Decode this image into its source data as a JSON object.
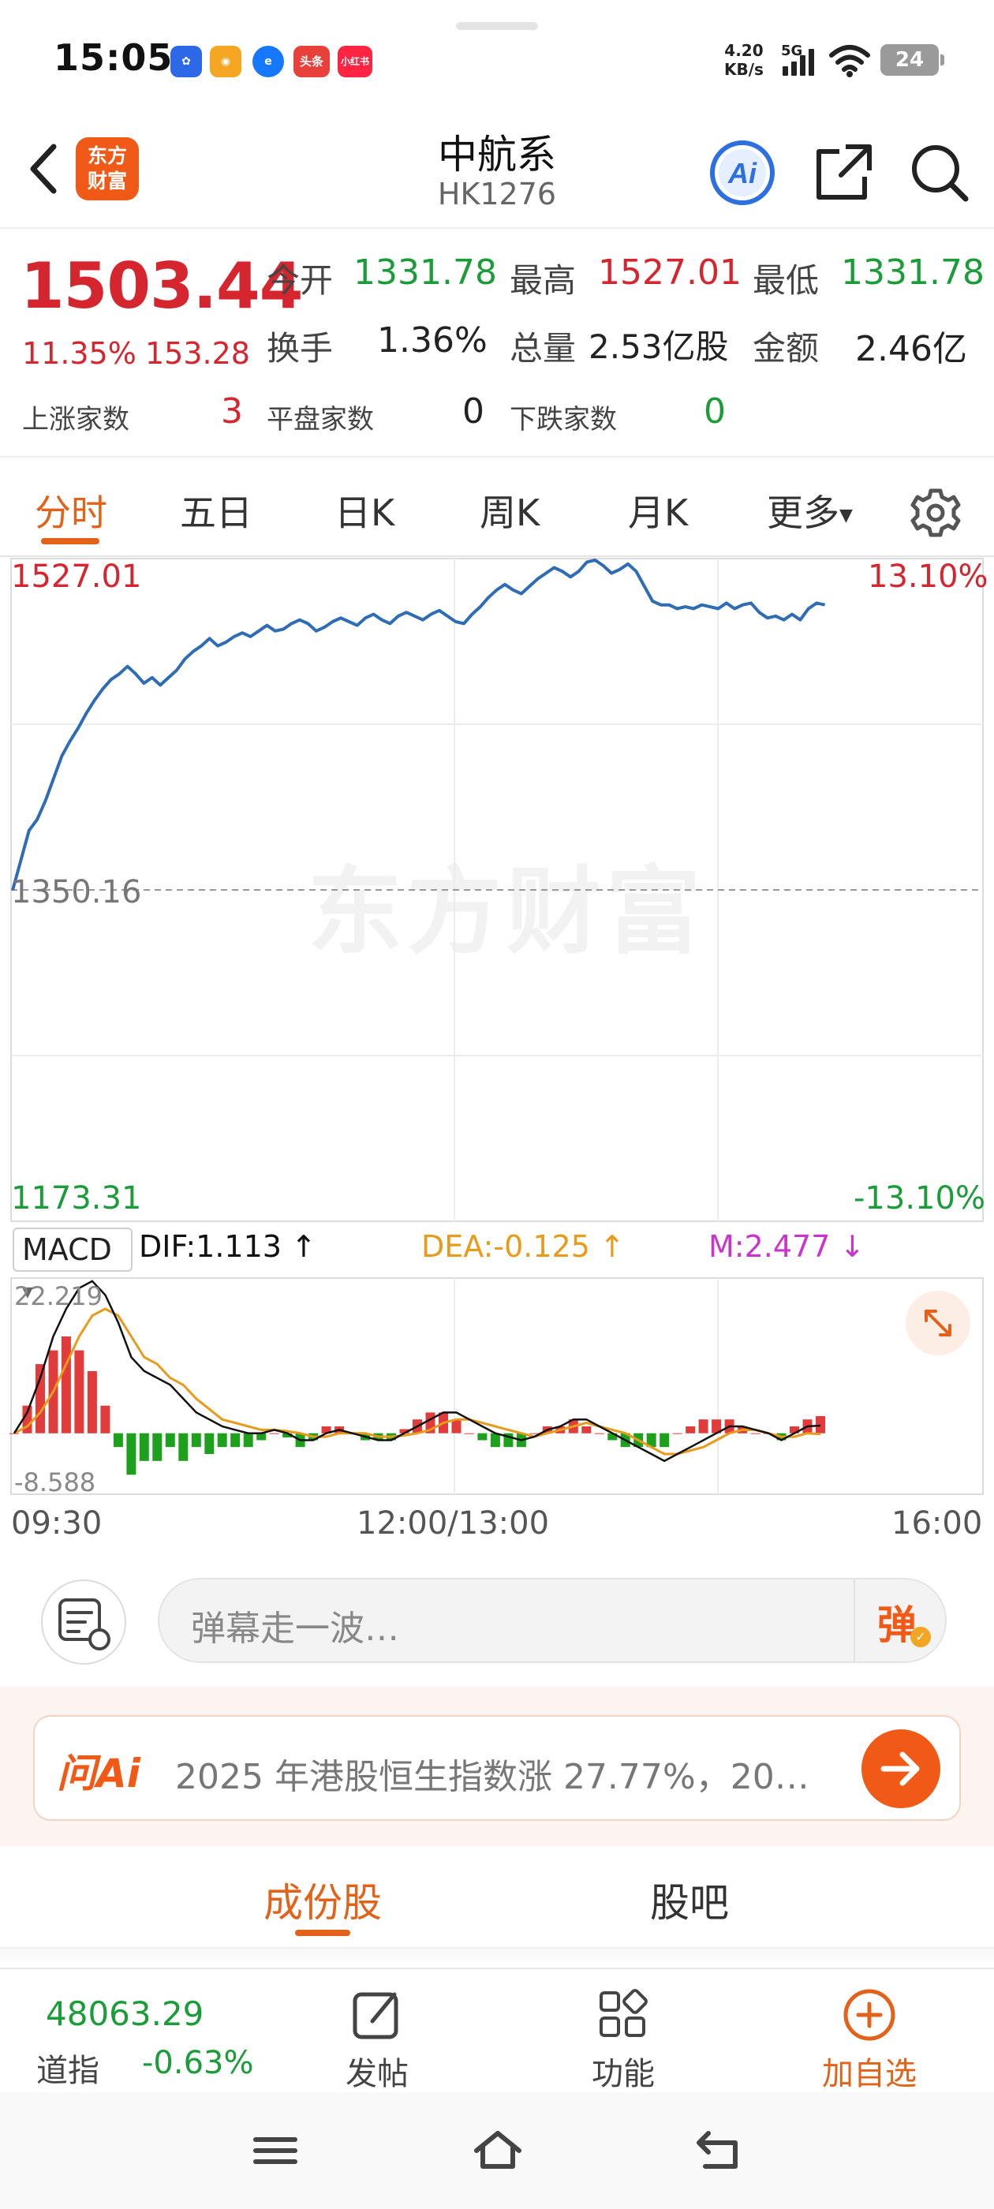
{
  "status_bar": {
    "time": "15:05",
    "apps": [
      {
        "icon": "baidu-icon",
        "label": "",
        "color": "#2d68e6"
      },
      {
        "icon": "shopping-app-icon",
        "label": "",
        "color": "#f5a623"
      },
      {
        "icon": "browser-icon",
        "label": "",
        "color": "#1677ff"
      },
      {
        "icon": "toutiao-icon",
        "label": "头条",
        "color": "#e8403a"
      },
      {
        "icon": "xiaohongshu-icon",
        "label": "小红书",
        "color": "#ff2442"
      }
    ],
    "net_speed_value": "4.20",
    "net_speed_unit": "KB/s",
    "signal_label": "5G",
    "battery": "24"
  },
  "header": {
    "logo_text_line1": "东方",
    "logo_text_line2": "财富",
    "stock_name": "中航系",
    "stock_code": "HK1276",
    "ai_label": "Ai"
  },
  "quote": {
    "price": "1503.44",
    "change_pct": "11.35%",
    "change_amt": "153.28",
    "open_label": "今开",
    "open": "1331.78",
    "high_label": "最高",
    "high": "1527.01",
    "low_label": "最低",
    "low": "1331.78",
    "turnover_label": "换手",
    "turnover": "1.36%",
    "volume_label": "总量",
    "volume": "2.53亿股",
    "amount_label": "金额",
    "amount": "2.46亿",
    "up_label": "上涨家数",
    "up_count": "3",
    "flat_label": "平盘家数",
    "flat_count": "0",
    "down_label": "下跌家数",
    "down_count": "0"
  },
  "tabs": [
    {
      "label": "分时",
      "active": true
    },
    {
      "label": "五日"
    },
    {
      "label": "日K"
    },
    {
      "label": "周K"
    },
    {
      "label": "月K"
    },
    {
      "label": "更多"
    }
  ],
  "chart_labels": {
    "y_max": "1527.01",
    "y_mid": "1350.16",
    "y_min": "1173.31",
    "pct_max": "13.10%",
    "pct_min": "-13.10%",
    "watermark": "东方财富",
    "x_start": "09:30",
    "x_mid": "12:00/13:00",
    "x_end": "16:00"
  },
  "macd": {
    "selector": "MACD",
    "dif": "DIF:1.113 ↑",
    "dea": "DEA:-0.125 ↑",
    "m": "M:2.477 ↓",
    "y_max": "22.219",
    "y_min": "-8.588",
    "colors": {
      "dif": "#111111",
      "dea": "#e89a1b",
      "m": "#cc33cc",
      "up_bar": "#e23b3b",
      "down_bar": "#1da11d"
    }
  },
  "chart_data": [
    {
      "type": "line",
      "title": "",
      "x_range": [
        "09:30",
        "16:00"
      ],
      "x_ticks": [
        "09:30",
        "12:00/13:00",
        "16:00"
      ],
      "ylim": [
        1173.31,
        1527.01
      ],
      "reference_price": 1350.16,
      "right_axis_pct": [
        "13.10%",
        "-13.10%"
      ],
      "series": [
        {
          "values": [
            1350,
            1366,
            1382,
            1388,
            1398,
            1410,
            1422,
            1430,
            1437,
            1445,
            1452,
            1458,
            1463,
            1466,
            1470,
            1466,
            1461,
            1464,
            1460,
            1464,
            1468,
            1474,
            1478,
            1481,
            1485,
            1481,
            1483,
            1486,
            1488,
            1486,
            1489,
            1492,
            1489,
            1490,
            1493,
            1495,
            1493,
            1489,
            1491,
            1494,
            1496,
            1494,
            1492,
            1496,
            1498,
            1495,
            1493,
            1497,
            1499,
            1497,
            1495,
            1498,
            1500,
            1497,
            1494,
            1493,
            1498,
            1502,
            1507,
            1511,
            1514,
            1511,
            1509,
            1513,
            1517,
            1520,
            1523,
            1521,
            1518,
            1521,
            1526,
            1527,
            1524,
            1520,
            1522,
            1525,
            1521,
            1513,
            1505,
            1503,
            1503,
            1501,
            1502,
            1501,
            1503,
            1502,
            1501,
            1504,
            1501,
            1503,
            1504,
            1499,
            1496,
            1497,
            1495,
            1498,
            1495,
            1501,
            1504,
            1503
          ]
        }
      ]
    },
    {
      "type": "line",
      "title": "MACD",
      "ylim": [
        -8.588,
        22.219
      ],
      "series": [
        {
          "name": "DIF",
          "values": [
            0,
            3,
            8,
            14,
            18,
            21,
            22,
            20,
            16,
            11,
            9,
            8,
            7,
            5,
            3,
            2,
            1,
            0.5,
            0,
            0,
            0.5,
            0,
            -1,
            -1,
            0,
            0.5,
            0,
            -0.5,
            -1,
            -1,
            0,
            1,
            2,
            3,
            3,
            2,
            1,
            0,
            -0.5,
            -1,
            -0.5,
            0.5,
            1,
            2,
            2,
            1,
            0,
            -1,
            -2,
            -3,
            -4,
            -3,
            -2,
            -1,
            0,
            1,
            1,
            0.5,
            0,
            -1,
            0,
            1,
            1.113
          ]
        },
        {
          "name": "DEA",
          "values": [
            0,
            1,
            3,
            6,
            10,
            14,
            17,
            18,
            17,
            14,
            11,
            10,
            8,
            7,
            5,
            3.5,
            2,
            1.5,
            1,
            0.5,
            0.5,
            0.3,
            0,
            -0.5,
            -0.5,
            0,
            0,
            0,
            -0.5,
            -0.5,
            -0.3,
            0,
            0.5,
            1.5,
            2,
            2,
            1.5,
            1,
            0.5,
            0,
            -0.5,
            0,
            0.5,
            1,
            1.5,
            1,
            0.5,
            0,
            -1,
            -2,
            -3,
            -3,
            -2.5,
            -2,
            -1,
            0,
            0.5,
            0.5,
            0,
            -0.5,
            -0.5,
            0,
            -0.125
          ]
        },
        {
          "name": "MACD bars",
          "values": [
            0,
            4,
            10,
            12,
            14,
            12,
            9,
            4,
            -2,
            -6,
            -4,
            -4,
            -2,
            -4,
            -2,
            -3,
            -2,
            -2,
            -2,
            -1,
            0,
            -0.6,
            -2,
            -1,
            1,
            1,
            0,
            -1,
            -1,
            -1,
            0.6,
            2,
            3,
            3,
            2,
            0,
            -1,
            -2,
            -2,
            -2,
            0,
            1,
            1,
            2,
            1,
            0,
            -1,
            -2,
            -2,
            -2,
            -2,
            0,
            1,
            2,
            2,
            2,
            1,
            0,
            0,
            -1,
            1,
            2,
            2.477
          ]
        }
      ]
    }
  ],
  "danmu": {
    "placeholder": "弹幕走一波…",
    "send_label": "弹"
  },
  "ai_banner": {
    "logo": "问Ai",
    "text": "2025 年港股恒生指数涨 27.77%，20…"
  },
  "sub_tabs": [
    {
      "label": "成份股",
      "active": true
    },
    {
      "label": "股吧"
    }
  ],
  "bottom_bar": {
    "index_value": "48063.29",
    "index_name": "道指",
    "index_change": "-0.63%",
    "post_label": "发帖",
    "func_label": "功能",
    "add_label": "加自选"
  }
}
